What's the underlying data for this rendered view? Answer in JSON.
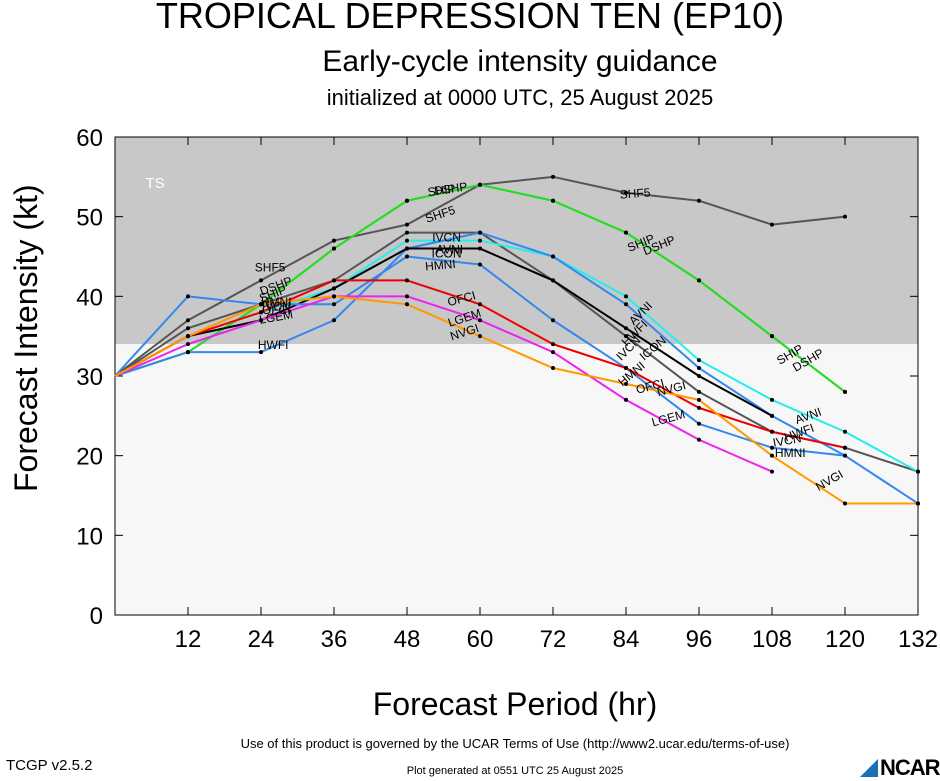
{
  "title": "TROPICAL DEPRESSION TEN (EP10)",
  "subtitle": "Early-cycle intensity guidance",
  "init_text": "initialized at 0000 UTC, 25 August 2025",
  "footer_terms": "Use of this product is governed by the UCAR Terms of Use (http://www2.ucar.edu/terms-of-use)",
  "footer_generated": "Plot generated at 0551 UTC   25 August 2025",
  "version": "TCGP v2.5.2",
  "logo_text": "NCAR",
  "chart_data": {
    "type": "line",
    "xlabel": "Forecast Period (hr)",
    "ylabel": "Forecast Intensity (kt)",
    "xlim": [
      0,
      132
    ],
    "ylim": [
      0,
      60
    ],
    "xticks": [
      12,
      24,
      36,
      48,
      60,
      72,
      84,
      96,
      108,
      120,
      132
    ],
    "yticks": [
      0,
      10,
      20,
      30,
      40,
      50,
      60
    ],
    "bands": [
      {
        "name": "TS",
        "from": 34,
        "to": 60,
        "color": "#c8c8c8"
      },
      {
        "name": "",
        "from": 0,
        "to": 34,
        "color": "#f7f7f7"
      }
    ],
    "series": [
      {
        "name": "SHF5",
        "color": "#555555",
        "x": [
          0,
          12,
          24,
          36,
          48,
          60,
          72,
          84,
          96,
          108,
          120
        ],
        "y": [
          30,
          37,
          42,
          47,
          49,
          54,
          55,
          53,
          52,
          49,
          50
        ]
      },
      {
        "name": "DSHP",
        "color": "#22dd22",
        "x": [
          0,
          12,
          24,
          36,
          48,
          60,
          72,
          84,
          96,
          108,
          120
        ],
        "y": [
          30,
          33,
          39,
          46,
          52,
          54,
          52,
          48,
          42,
          35,
          28
        ]
      },
      {
        "name": "SHIP",
        "color": "#22dd22",
        "x": [
          0,
          12,
          24,
          36,
          48,
          60,
          72,
          84,
          96,
          108,
          120
        ],
        "y": [
          30,
          33,
          39,
          46,
          52,
          54,
          52,
          48,
          42,
          35,
          28
        ]
      },
      {
        "name": "IVCN",
        "color": "#555555",
        "x": [
          0,
          12,
          24,
          36,
          48,
          60,
          72,
          84,
          96,
          108,
          120,
          132
        ],
        "y": [
          30,
          36,
          39,
          42,
          48,
          48,
          42,
          35,
          28,
          23,
          21,
          18
        ]
      },
      {
        "name": "AVNI",
        "color": "#22eeee",
        "x": [
          0,
          12,
          24,
          36,
          48,
          60,
          72,
          84,
          96,
          108,
          120,
          132
        ],
        "y": [
          30,
          35,
          38,
          41,
          47,
          47,
          45,
          40,
          32,
          27,
          23,
          18
        ]
      },
      {
        "name": "HWFI",
        "color": "#3388ee",
        "x": [
          0,
          12,
          24,
          36,
          48,
          60,
          72,
          84,
          96,
          108,
          120,
          132
        ],
        "y": [
          30,
          33,
          33,
          37,
          46,
          48,
          45,
          39,
          31,
          25,
          20,
          14
        ]
      },
      {
        "name": "ICON",
        "color": "#000000",
        "x": [
          0,
          12,
          24,
          36,
          48,
          60,
          72,
          84,
          96,
          108
        ],
        "y": [
          30,
          35,
          37,
          41,
          46,
          46,
          42,
          36,
          30,
          25
        ]
      },
      {
        "name": "HMNI",
        "color": "#3388ee",
        "x": [
          0,
          12,
          24,
          36,
          48,
          60,
          72,
          84,
          96,
          108,
          120
        ],
        "y": [
          30,
          40,
          39,
          39,
          45,
          44,
          37,
          31,
          24,
          21,
          20
        ]
      },
      {
        "name": "OFCI",
        "color": "#ee0000",
        "x": [
          0,
          12,
          24,
          36,
          48,
          60,
          72,
          84,
          96,
          108,
          120
        ],
        "y": [
          30,
          35,
          38,
          42,
          42,
          39,
          34,
          31,
          26,
          23,
          21
        ]
      },
      {
        "name": "LGEM",
        "color": "#ee22ee",
        "x": [
          0,
          12,
          24,
          36,
          48,
          60,
          72,
          84,
          96,
          108
        ],
        "y": [
          30,
          34,
          37,
          40,
          40,
          37,
          33,
          27,
          22,
          18
        ]
      },
      {
        "name": "NVGI",
        "color": "#ff9900",
        "x": [
          0,
          12,
          24,
          36,
          48,
          60,
          72,
          84,
          96,
          108,
          120,
          132
        ],
        "y": [
          30,
          35,
          39,
          40,
          39,
          35,
          31,
          29,
          27,
          20,
          14,
          14
        ]
      }
    ],
    "labels": [
      {
        "text": "SHF5",
        "x": 25.5,
        "y": 43.5,
        "angle": 0
      },
      {
        "text": "SHF5",
        "x": 53.5,
        "y": 50.2,
        "angle": -18
      },
      {
        "text": "SHF5",
        "x": 85.5,
        "y": 52.8,
        "angle": -4
      },
      {
        "text": "SHIP",
        "x": 53.7,
        "y": 53.2,
        "angle": -8
      },
      {
        "text": "DSHP",
        "x": 55.2,
        "y": 53.4,
        "angle": -8
      },
      {
        "text": "SHIP",
        "x": 26.0,
        "y": 40.2,
        "angle": -20
      },
      {
        "text": "DSHP",
        "x": 26.5,
        "y": 41.2,
        "angle": -20
      },
      {
        "text": "SHIP",
        "x": 86.5,
        "y": 46.6,
        "angle": -22
      },
      {
        "text": "DSHP",
        "x": 89.5,
        "y": 46.3,
        "angle": -22
      },
      {
        "text": "SHIP",
        "x": 111.0,
        "y": 32.6,
        "angle": -30
      },
      {
        "text": "DSHP",
        "x": 114.0,
        "y": 31.9,
        "angle": -30
      },
      {
        "text": "IVCN",
        "x": 54.5,
        "y": 47.3,
        "angle": 0
      },
      {
        "text": "IVCN",
        "x": 26.5,
        "y": 38.6,
        "angle": 0
      },
      {
        "text": "IVCN",
        "x": 84.5,
        "y": 33.4,
        "angle": -45
      },
      {
        "text": "IVCN",
        "x": 110.5,
        "y": 21.8,
        "angle": -10
      },
      {
        "text": "AVNI",
        "x": 55.0,
        "y": 45.8,
        "angle": 0
      },
      {
        "text": "AVNI",
        "x": 86.5,
        "y": 37.8,
        "angle": -45
      },
      {
        "text": "AVNI",
        "x": 114.0,
        "y": 24.9,
        "angle": -20
      },
      {
        "text": "HWFI",
        "x": 26.0,
        "y": 33.8,
        "angle": 0
      },
      {
        "text": "HWFI",
        "x": 85.5,
        "y": 35.3,
        "angle": -45
      },
      {
        "text": "HWFI",
        "x": 112.5,
        "y": 22.8,
        "angle": -20
      },
      {
        "text": "ICON",
        "x": 54.5,
        "y": 45.3,
        "angle": 0
      },
      {
        "text": "ICON",
        "x": 88.5,
        "y": 33.4,
        "angle": -40
      },
      {
        "text": "HMNI",
        "x": 26.5,
        "y": 39.2,
        "angle": 0
      },
      {
        "text": "HMNI",
        "x": 53.5,
        "y": 43.8,
        "angle": -5
      },
      {
        "text": "HMNI",
        "x": 85.0,
        "y": 30.2,
        "angle": -40
      },
      {
        "text": "HMNI",
        "x": 111.0,
        "y": 20.2,
        "angle": 0
      },
      {
        "text": "OFCI",
        "x": 26.5,
        "y": 38.2,
        "angle": 0
      },
      {
        "text": "OFCI",
        "x": 57.0,
        "y": 39.6,
        "angle": -15
      },
      {
        "text": "OFCI",
        "x": 88.0,
        "y": 28.6,
        "angle": -15
      },
      {
        "text": "LGEM",
        "x": 26.5,
        "y": 37.3,
        "angle": -10
      },
      {
        "text": "LGEM",
        "x": 57.5,
        "y": 37.2,
        "angle": -18
      },
      {
        "text": "LGEM",
        "x": 91.0,
        "y": 24.6,
        "angle": -15
      },
      {
        "text": "NVGI",
        "x": 57.5,
        "y": 35.4,
        "angle": -18
      },
      {
        "text": "NVGI",
        "x": 91.5,
        "y": 28.3,
        "angle": -15
      },
      {
        "text": "NVGI",
        "x": 117.5,
        "y": 16.8,
        "angle": -30
      }
    ]
  }
}
